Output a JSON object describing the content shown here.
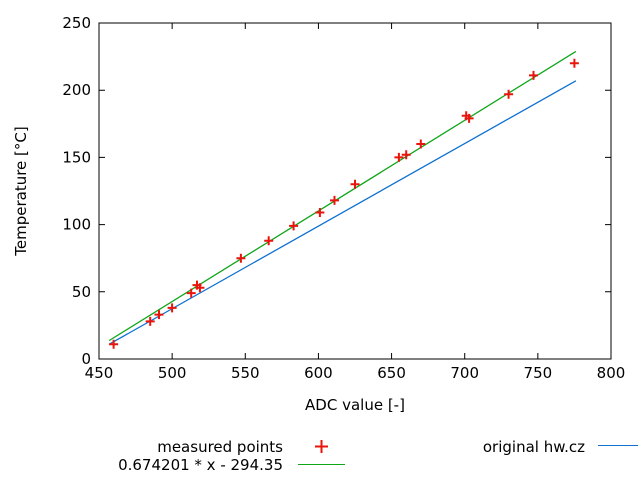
{
  "chart_data": {
    "type": "scatter",
    "title": "",
    "xlabel": "ADC value [-]",
    "ylabel": "Temperature [°C]",
    "xlim": [
      450,
      800
    ],
    "ylim": [
      0,
      250
    ],
    "xticks": [
      450,
      500,
      550,
      600,
      650,
      700,
      750,
      800
    ],
    "yticks": [
      0,
      50,
      100,
      150,
      200,
      250
    ],
    "grid": false,
    "legend_position": "below-plot",
    "frame_color": "#000000",
    "series": [
      {
        "name": "measured points",
        "style": "points",
        "marker": "plus",
        "color": "#ea140c",
        "points": [
          [
            460,
            11
          ],
          [
            485,
            28
          ],
          [
            491,
            33
          ],
          [
            500,
            38
          ],
          [
            513,
            49
          ],
          [
            517,
            55
          ],
          [
            519,
            53
          ],
          [
            547,
            75
          ],
          [
            566,
            88
          ],
          [
            583,
            99
          ],
          [
            601,
            109
          ],
          [
            611,
            118
          ],
          [
            625,
            130
          ],
          [
            655,
            150
          ],
          [
            660,
            152
          ],
          [
            670,
            160
          ],
          [
            701,
            181
          ],
          [
            703,
            179
          ],
          [
            730,
            197
          ],
          [
            747,
            211
          ],
          [
            775,
            220
          ]
        ]
      },
      {
        "name": "0.674201 * x - 294.35",
        "style": "line",
        "color": "#0fa618",
        "fit": {
          "slope": 0.674201,
          "intercept": -294.35
        },
        "x_range": [
          457,
          776
        ]
      },
      {
        "name": "original hw.cz",
        "style": "line",
        "color": "#0e70d1",
        "endpoints": [
          [
            457,
            11
          ],
          [
            776,
            207
          ]
        ]
      }
    ]
  }
}
